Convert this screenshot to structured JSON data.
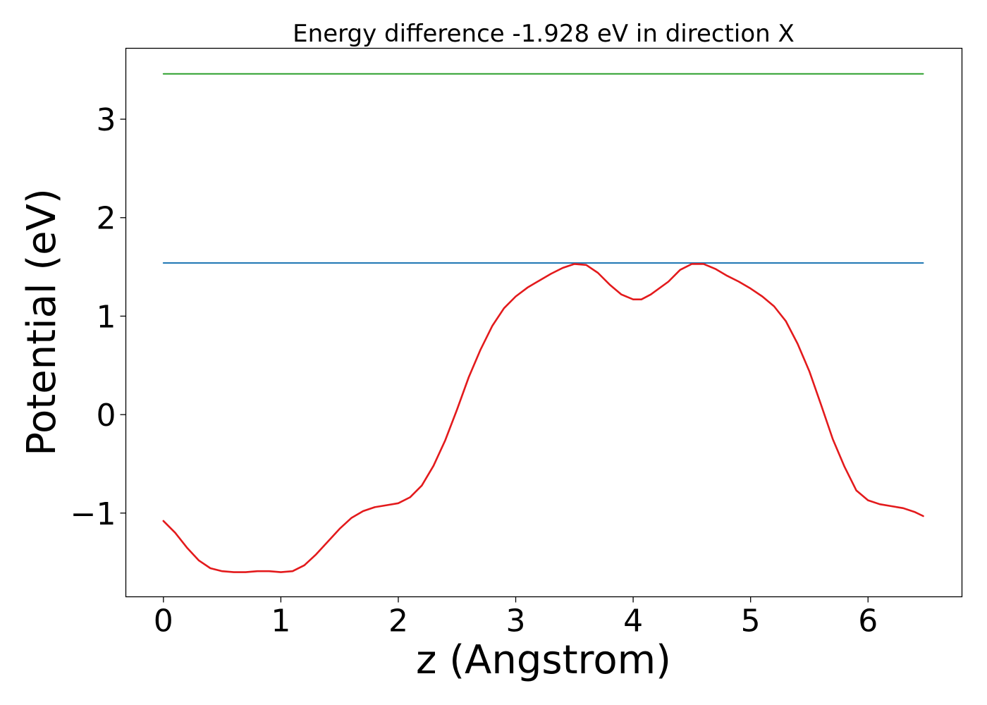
{
  "chart_data": {
    "type": "line",
    "title": "Energy difference -1.928 eV in direction X",
    "xlabel": "z (Angstrom)",
    "ylabel": "Potential (eV)",
    "xlim": [
      -0.32,
      6.8
    ],
    "ylim": [
      -1.85,
      3.72
    ],
    "x_ticks": [
      {
        "value": 0,
        "label": "0"
      },
      {
        "value": 1,
        "label": "1"
      },
      {
        "value": 2,
        "label": "2"
      },
      {
        "value": 3,
        "label": "3"
      },
      {
        "value": 4,
        "label": "4"
      },
      {
        "value": 5,
        "label": "5"
      },
      {
        "value": 6,
        "label": "6"
      }
    ],
    "y_ticks": [
      {
        "value": -1,
        "label": "−1"
      },
      {
        "value": 0,
        "label": "0"
      },
      {
        "value": 1,
        "label": "1"
      },
      {
        "value": 2,
        "label": "2"
      },
      {
        "value": 3,
        "label": "3"
      }
    ],
    "grid": false,
    "series": [
      {
        "color": "#2ca02c",
        "x": [
          0.0,
          6.47
        ],
        "y": [
          3.46,
          3.46
        ]
      },
      {
        "color": "#1f77b4",
        "x": [
          0.0,
          6.47
        ],
        "y": [
          1.54,
          1.54
        ]
      },
      {
        "color": "#e31a1c",
        "x": [
          0.0,
          0.1,
          0.2,
          0.3,
          0.4,
          0.5,
          0.6,
          0.7,
          0.8,
          0.9,
          1.0,
          1.1,
          1.2,
          1.3,
          1.4,
          1.5,
          1.6,
          1.7,
          1.8,
          1.9,
          2.0,
          2.1,
          2.2,
          2.3,
          2.4,
          2.5,
          2.6,
          2.7,
          2.8,
          2.9,
          3.0,
          3.1,
          3.2,
          3.3,
          3.4,
          3.5,
          3.6,
          3.7,
          3.8,
          3.9,
          4.0,
          4.07,
          4.15,
          4.3,
          4.4,
          4.5,
          4.6,
          4.7,
          4.8,
          4.9,
          5.0,
          5.1,
          5.2,
          5.3,
          5.4,
          5.5,
          5.6,
          5.7,
          5.8,
          5.9,
          6.0,
          6.1,
          6.2,
          6.3,
          6.4,
          6.47
        ],
        "y": [
          -1.08,
          -1.2,
          -1.35,
          -1.48,
          -1.56,
          -1.59,
          -1.6,
          -1.6,
          -1.59,
          -1.59,
          -1.6,
          -1.59,
          -1.53,
          -1.42,
          -1.29,
          -1.16,
          -1.05,
          -0.98,
          -0.94,
          -0.92,
          -0.9,
          -0.84,
          -0.72,
          -0.52,
          -0.26,
          0.05,
          0.38,
          0.66,
          0.9,
          1.08,
          1.2,
          1.29,
          1.36,
          1.43,
          1.49,
          1.53,
          1.52,
          1.44,
          1.32,
          1.22,
          1.17,
          1.17,
          1.22,
          1.35,
          1.47,
          1.53,
          1.53,
          1.48,
          1.41,
          1.35,
          1.28,
          1.2,
          1.1,
          0.95,
          0.72,
          0.44,
          0.1,
          -0.25,
          -0.53,
          -0.77,
          -0.87,
          -0.91,
          -0.93,
          -0.95,
          -0.99,
          -1.03
        ]
      }
    ]
  }
}
